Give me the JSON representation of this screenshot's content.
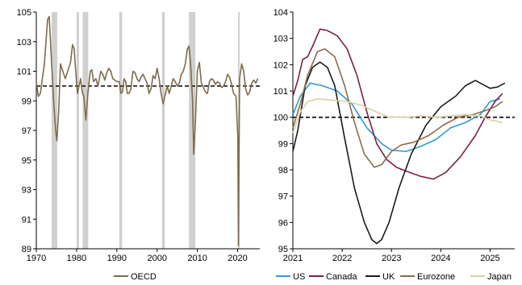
{
  "chart_data": [
    {
      "type": "line",
      "title": "",
      "xlim": [
        1970,
        2025.5
      ],
      "ylim": [
        89,
        105
      ],
      "x_ticks": [
        "1970",
        "1980",
        "1990",
        "2000",
        "2010",
        "2020"
      ],
      "y_ticks": [
        "89",
        "91",
        "93",
        "95",
        "97",
        "99",
        "101",
        "103",
        "105"
      ],
      "reference_line": 100,
      "recession_shading": [
        [
          1973.8,
          1975.2
        ],
        [
          1980.0,
          1980.6
        ],
        [
          1981.5,
          1982.9
        ],
        [
          1990.6,
          1991.3
        ],
        [
          2001.2,
          2001.9
        ],
        [
          2007.9,
          2009.5
        ],
        [
          2020.1,
          2020.4
        ]
      ],
      "series": [
        {
          "name": "OECD",
          "color": "#7f6b4b",
          "points": [
            [
              1970,
              100.3
            ],
            [
              1970.5,
              99.3
            ],
            [
              1971,
              99.5
            ],
            [
              1972,
              101.5
            ],
            [
              1972.8,
              104.5
            ],
            [
              1973.2,
              104.7
            ],
            [
              1973.8,
              101.5
            ],
            [
              1974.3,
              99.0
            ],
            [
              1974.8,
              97.0
            ],
            [
              1975.1,
              96.3
            ],
            [
              1975.6,
              98.5
            ],
            [
              1976,
              101.5
            ],
            [
              1976.6,
              101.0
            ],
            [
              1977.2,
              100.5
            ],
            [
              1977.8,
              101.0
            ],
            [
              1978.5,
              101.6
            ],
            [
              1979,
              102.8
            ],
            [
              1979.4,
              102.5
            ],
            [
              1979.8,
              101.0
            ],
            [
              1980.2,
              99.5
            ],
            [
              1980.6,
              100.0
            ],
            [
              1981,
              100.5
            ],
            [
              1981.4,
              99.6
            ],
            [
              1981.8,
              99.3
            ],
            [
              1982.3,
              97.7
            ],
            [
              1982.8,
              99.5
            ],
            [
              1983.4,
              101.0
            ],
            [
              1983.8,
              101.1
            ],
            [
              1984.2,
              100.3
            ],
            [
              1984.8,
              100.5
            ],
            [
              1985.3,
              100.0
            ],
            [
              1986,
              101.0
            ],
            [
              1986.5,
              100.8
            ],
            [
              1987,
              100.4
            ],
            [
              1987.5,
              100.9
            ],
            [
              1988,
              101.2
            ],
            [
              1988.5,
              101.0
            ],
            [
              1989,
              100.5
            ],
            [
              1989.5,
              100.4
            ],
            [
              1990,
              100.3
            ],
            [
              1990.6,
              100.3
            ],
            [
              1991,
              99.5
            ],
            [
              1991.4,
              99.6
            ],
            [
              1991.8,
              100.5
            ],
            [
              1992.2,
              100.3
            ],
            [
              1992.6,
              99.5
            ],
            [
              1993,
              99.5
            ],
            [
              1993.5,
              99.8
            ],
            [
              1994,
              101.0
            ],
            [
              1994.5,
              100.9
            ],
            [
              1995,
              100.5
            ],
            [
              1995.5,
              100.3
            ],
            [
              1996,
              100.6
            ],
            [
              1996.5,
              100.8
            ],
            [
              1997,
              100.5
            ],
            [
              1997.5,
              100.2
            ],
            [
              1998,
              99.5
            ],
            [
              1998.5,
              99.8
            ],
            [
              1999,
              100.7
            ],
            [
              1999.5,
              100.5
            ],
            [
              2000,
              101.2
            ],
            [
              2000.5,
              100.5
            ],
            [
              2001,
              99.5
            ],
            [
              2001.5,
              98.8
            ],
            [
              2002,
              99.4
            ],
            [
              2002.5,
              100.0
            ],
            [
              2003,
              99.5
            ],
            [
              2003.5,
              100.0
            ],
            [
              2004,
              100.5
            ],
            [
              2004.5,
              100.3
            ],
            [
              2005,
              100.0
            ],
            [
              2005.5,
              100.2
            ],
            [
              2006,
              100.8
            ],
            [
              2006.5,
              101.0
            ],
            [
              2007,
              101.5
            ],
            [
              2007.5,
              102.5
            ],
            [
              2007.9,
              102.7
            ],
            [
              2008.3,
              101.5
            ],
            [
              2008.8,
              99.0
            ],
            [
              2009.1,
              95.4
            ],
            [
              2009.5,
              97.5
            ],
            [
              2010,
              101.0
            ],
            [
              2010.5,
              101.6
            ],
            [
              2011,
              100.2
            ],
            [
              2011.5,
              99.9
            ],
            [
              2012,
              99.6
            ],
            [
              2012.5,
              99.5
            ],
            [
              2013,
              100.3
            ],
            [
              2013.5,
              100.5
            ],
            [
              2014,
              100.4
            ],
            [
              2014.5,
              100.1
            ],
            [
              2015,
              100.3
            ],
            [
              2015.5,
              100.2
            ],
            [
              2016,
              99.9
            ],
            [
              2016.5,
              100.0
            ],
            [
              2017,
              100.3
            ],
            [
              2017.5,
              100.8
            ],
            [
              2018,
              100.6
            ],
            [
              2018.5,
              100.1
            ],
            [
              2019,
              99.5
            ],
            [
              2019.6,
              99.3
            ],
            [
              2020.05,
              96.5
            ],
            [
              2020.2,
              89.2
            ],
            [
              2020.35,
              95.5
            ],
            [
              2020.5,
              100.5
            ],
            [
              2021,
              101.5
            ],
            [
              2021.5,
              101.0
            ],
            [
              2022,
              99.8
            ],
            [
              2022.5,
              99.4
            ],
            [
              2023,
              99.6
            ],
            [
              2023.5,
              100.2
            ],
            [
              2024,
              100.4
            ],
            [
              2024.5,
              100.2
            ],
            [
              2025,
              100.5
            ]
          ]
        }
      ],
      "legend": "bottom"
    },
    {
      "type": "line",
      "title": "",
      "xlim": [
        2021,
        2025.5
      ],
      "ylim": [
        95,
        104
      ],
      "x_ticks": [
        "2021",
        "2022",
        "2023",
        "2024",
        "2025"
      ],
      "y_ticks": [
        "95",
        "96",
        "97",
        "98",
        "99",
        "100",
        "101",
        "102",
        "103",
        "104"
      ],
      "reference_line": 100,
      "series": [
        {
          "name": "US",
          "color": "#2e9ad8",
          "points": [
            [
              2021,
              100.1
            ],
            [
              2021.15,
              100.8
            ],
            [
              2021.35,
              101.3
            ],
            [
              2021.6,
              101.2
            ],
            [
              2021.9,
              101.0
            ],
            [
              2022.2,
              100.5
            ],
            [
              2022.5,
              99.6
            ],
            [
              2022.8,
              99.0
            ],
            [
              2023,
              98.75
            ],
            [
              2023.3,
              98.7
            ],
            [
              2023.6,
              98.9
            ],
            [
              2023.9,
              99.15
            ],
            [
              2024.2,
              99.6
            ],
            [
              2024.5,
              99.8
            ],
            [
              2024.8,
              100.1
            ],
            [
              2025,
              100.6
            ],
            [
              2025.2,
              100.7
            ]
          ]
        },
        {
          "name": "Canada",
          "color": "#7b1f4a",
          "points": [
            [
              2021,
              100.8
            ],
            [
              2021.1,
              101.4
            ],
            [
              2021.2,
              102.2
            ],
            [
              2021.3,
              102.3
            ],
            [
              2021.4,
              102.7
            ],
            [
              2021.55,
              103.35
            ],
            [
              2021.7,
              103.3
            ],
            [
              2021.9,
              103.1
            ],
            [
              2022.1,
              102.6
            ],
            [
              2022.3,
              101.6
            ],
            [
              2022.5,
              100.2
            ],
            [
              2022.7,
              99.0
            ],
            [
              2022.9,
              98.4
            ],
            [
              2023.1,
              98.1
            ],
            [
              2023.3,
              97.95
            ],
            [
              2023.6,
              97.75
            ],
            [
              2023.85,
              97.65
            ],
            [
              2024.1,
              97.9
            ],
            [
              2024.4,
              98.5
            ],
            [
              2024.7,
              99.3
            ],
            [
              2024.9,
              100.0
            ],
            [
              2025.1,
              100.6
            ],
            [
              2025.25,
              100.9
            ]
          ]
        },
        {
          "name": "UK",
          "color": "#1a1a1a",
          "points": [
            [
              2021,
              98.7
            ],
            [
              2021.1,
              99.5
            ],
            [
              2021.25,
              101.2
            ],
            [
              2021.4,
              101.9
            ],
            [
              2021.55,
              102.1
            ],
            [
              2021.7,
              101.9
            ],
            [
              2021.85,
              101.2
            ],
            [
              2022.05,
              99.2
            ],
            [
              2022.25,
              97.3
            ],
            [
              2022.45,
              96.0
            ],
            [
              2022.6,
              95.35
            ],
            [
              2022.7,
              95.2
            ],
            [
              2022.8,
              95.35
            ],
            [
              2022.95,
              96.0
            ],
            [
              2023.15,
              97.3
            ],
            [
              2023.4,
              98.6
            ],
            [
              2023.7,
              99.7
            ],
            [
              2024.0,
              100.4
            ],
            [
              2024.3,
              100.8
            ],
            [
              2024.5,
              101.2
            ],
            [
              2024.7,
              101.4
            ],
            [
              2024.85,
              101.25
            ],
            [
              2025.0,
              101.1
            ],
            [
              2025.15,
              101.15
            ],
            [
              2025.3,
              101.3
            ]
          ]
        },
        {
          "name": "Eurozone",
          "color": "#8b6c48",
          "points": [
            [
              2021,
              99.6
            ],
            [
              2021.15,
              100.5
            ],
            [
              2021.3,
              101.6
            ],
            [
              2021.5,
              102.5
            ],
            [
              2021.65,
              102.6
            ],
            [
              2021.85,
              102.3
            ],
            [
              2022.05,
              101.2
            ],
            [
              2022.25,
              99.8
            ],
            [
              2022.45,
              98.6
            ],
            [
              2022.65,
              98.1
            ],
            [
              2022.8,
              98.2
            ],
            [
              2023.0,
              98.7
            ],
            [
              2023.2,
              98.95
            ],
            [
              2023.45,
              99.05
            ],
            [
              2023.75,
              99.3
            ],
            [
              2024.05,
              99.7
            ],
            [
              2024.35,
              100.0
            ],
            [
              2024.65,
              100.1
            ],
            [
              2024.9,
              100.25
            ],
            [
              2025.1,
              100.4
            ],
            [
              2025.25,
              100.6
            ]
          ]
        },
        {
          "name": "Japan",
          "color": "#d9d0a6",
          "points": [
            [
              2021,
              99.4
            ],
            [
              2021.15,
              100.2
            ],
            [
              2021.3,
              100.6
            ],
            [
              2021.5,
              100.7
            ],
            [
              2021.8,
              100.65
            ],
            [
              2022.1,
              100.6
            ],
            [
              2022.4,
              100.45
            ],
            [
              2022.7,
              100.2
            ],
            [
              2022.95,
              100.0
            ],
            [
              2023.3,
              100.0
            ],
            [
              2023.6,
              100.05
            ],
            [
              2023.9,
              100.0
            ],
            [
              2024.2,
              100.05
            ],
            [
              2024.5,
              100.1
            ],
            [
              2024.8,
              100.05
            ],
            [
              2025.0,
              99.9
            ],
            [
              2025.25,
              99.8
            ]
          ]
        }
      ],
      "legend": "bottom"
    }
  ]
}
